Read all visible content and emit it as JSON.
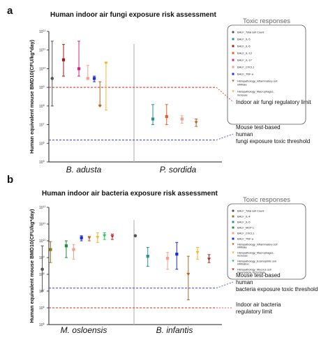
{
  "chart_data": [
    {
      "panel": "a",
      "type": "scatter",
      "title": "Human indoor air fungi exposure risk assessment",
      "ylabel": "Human equivalent mouse BMD10(CFU/kg*day)",
      "yscale": "log",
      "ylim": [
        100000.0,
        1000000000000.0
      ],
      "ytick_exponents": [
        5,
        6,
        7,
        8,
        9,
        10,
        11,
        12
      ],
      "categories": [
        "B. adusta",
        "P. sordida"
      ],
      "legend_title": "Toxic responses",
      "legend_placement": "top-right",
      "series": [
        {
          "name": "BALF_Total cell Count",
          "color": "#555555",
          "marker": "circle",
          "points": [
            {
              "group": 0,
              "offset": -0.78,
              "value": 3000000000.0,
              "low": 100000000.0,
              "high": 300000000000.0
            }
          ]
        },
        {
          "name": "BALF_IL-5",
          "color": "#2a8f96",
          "marker": "square",
          "points": [
            {
              "group": 1,
              "offset": -0.62,
              "value": 20000000.0,
              "low": 10000000.0,
              "high": 120000000.0
            }
          ]
        },
        {
          "name": "BALF_IL-6",
          "color": "#9b1b1b",
          "marker": "square",
          "points": [
            {
              "group": 0,
              "offset": -0.5,
              "value": 30000000000.0,
              "low": 4000000000.0,
              "high": 200000000000.0
            }
          ]
        },
        {
          "name": "BALF_IL-13",
          "color": "#e06020",
          "marker": "square",
          "points": [
            {
              "group": 1,
              "offset": -0.28,
              "value": 27000000.0,
              "low": 10000000.0,
              "high": 120000000.0
            }
          ]
        },
        {
          "name": "BALF_IL-17",
          "color": "#d6247a",
          "marker": "square",
          "points": [
            {
              "group": 0,
              "offset": -0.12,
              "value": 10000000000.0,
              "low": 4000000000.0,
              "high": 300000000000.0
            }
          ]
        },
        {
          "name": "BALF_CXCL1",
          "color": "#f2a08a",
          "marker": "square",
          "points": [
            {
              "group": 0,
              "offset": 0.1,
              "value": 3000000000.0,
              "low": 3000000000.0,
              "high": 15000000000.0
            },
            {
              "group": 1,
              "offset": 0.1,
              "value": 20000000.0,
              "low": 12000000.0,
              "high": 30000000.0
            }
          ]
        },
        {
          "name": "BALF_TNF-a",
          "color": "#1a2be0",
          "marker": "square",
          "points": [
            {
              "group": 0,
              "offset": 0.26,
              "value": 3000000000.0,
              "low": 2000000000.0,
              "high": 4000000000.0
            }
          ]
        },
        {
          "name": "Histopathology_Inflammatory cell infiltrate",
          "color": "#b8651e",
          "marker": "triangle-down",
          "points": [
            {
              "group": 0,
              "offset": 0.4,
              "value": 100000000.0,
              "low": 100000000.0,
              "high": 2000000000.0
            },
            {
              "group": 1,
              "offset": 0.45,
              "value": 13000000.0,
              "low": 8000000.0,
              "high": 20000000.0
            }
          ]
        },
        {
          "name": "Histopathology_Macrophages, increase",
          "color": "#f2b630",
          "marker": "triangle-down",
          "points": [
            {
              "group": 0,
              "offset": 0.55,
              "value": 20000000000.0,
              "low": 60000000.0,
              "high": 20000000000.0
            }
          ]
        }
      ],
      "reference_lines": [
        {
          "label": "Indoor air fungi regulatory limit",
          "value": 1000000000.0,
          "color": "#e0281e"
        },
        {
          "label": "Mouse test-based\nhuman\nfungi exposure toxic threshold",
          "value": 1500000.0,
          "color": "#3a3ae8"
        }
      ]
    },
    {
      "panel": "b",
      "type": "scatter",
      "title": "Human indoor air bacteria exposure risk assessment",
      "ylabel": "Human equivalent mouse BMD10(CFU/kg*day)",
      "yscale": "log",
      "ylim": [
        100000.0,
        1000000000000.0
      ],
      "ytick_exponents": [
        5,
        6,
        7,
        8,
        9,
        10,
        11,
        12
      ],
      "categories": [
        "M. osloensis",
        "B. infantis"
      ],
      "legend_title": "Toxic responses",
      "legend_placement": "top-right",
      "series": [
        {
          "name": "BALF_Total cell Count",
          "color": "#555555",
          "marker": "circle",
          "points": [
            {
              "group": 0,
              "offset": -0.9,
              "value": 200000000.0,
              "low": 10000000.0,
              "high": 5000000000.0
            },
            {
              "group": 1,
              "offset": -0.85,
              "value": 20000000000.0,
              "low": 20000000000.0,
              "high": 20000000000.0
            }
          ]
        },
        {
          "name": "BALF_IL-4",
          "color": "#8a7a2a",
          "marker": "square",
          "points": [
            {
              "group": 0,
              "offset": -0.72,
              "value": 3000000000.0,
              "low": 500000000.0,
              "high": 9000000000.0
            }
          ]
        },
        {
          "name": "BALF_IL-5",
          "color": "#2a8f96",
          "marker": "square",
          "points": [
            {
              "group": 1,
              "offset": -0.58,
              "value": 1200000000.0,
              "low": 300000000.0,
              "high": 4000000000.0
            }
          ]
        },
        {
          "name": "BALF_MCP-1",
          "color": "#1e8c3c",
          "marker": "square",
          "points": [
            {
              "group": 0,
              "offset": -0.38,
              "value": 5000000000.0,
              "low": 1000000000.0,
              "high": 10000000000.0
            }
          ]
        },
        {
          "name": "BALF_CXCL1",
          "color": "#f2a08a",
          "marker": "square",
          "points": [
            {
              "group": 0,
              "offset": -0.22,
              "value": 3000000000.0,
              "low": 800000000.0,
              "high": 6000000000.0
            },
            {
              "group": 1,
              "offset": -0.15,
              "value": 900000000.0,
              "low": 200000000.0,
              "high": 2000000000.0
            }
          ]
        },
        {
          "name": "BALF_TNF-a",
          "color": "#1a2be0",
          "marker": "square",
          "points": [
            {
              "group": 0,
              "offset": -0.05,
              "value": 15000000000.0,
              "low": 10000000000.0,
              "high": 20000000000.0
            },
            {
              "group": 1,
              "offset": 0.05,
              "value": 1600000000.0,
              "low": 200000000.0,
              "high": 8000000000.0
            }
          ]
        },
        {
          "name": "Histopathology_Inflammatory cell infiltrate",
          "color": "#b8651e",
          "marker": "triangle-down",
          "points": [
            {
              "group": 0,
              "offset": 0.12,
              "value": 15000000000.0,
              "low": 10000000000.0,
              "high": 18000000000.0
            },
            {
              "group": 1,
              "offset": 0.3,
              "value": 100000000.0,
              "low": 3000000.0,
              "high": 1200000000.0
            }
          ]
        },
        {
          "name": "Histopathology_Macrophages, increase",
          "color": "#f2b630",
          "marker": "triangle-down",
          "points": [
            {
              "group": 0,
              "offset": 0.3,
              "value": 16000000000.0,
              "low": 8000000000.0,
              "high": 30000000000.0
            },
            {
              "group": 1,
              "offset": 0.5,
              "value": 2000000000.0,
              "low": 800000000.0,
              "high": 4000000000.0
            }
          ]
        },
        {
          "name": "Histopathology_Eosinophilic cell infiltration",
          "color": "#22c25a",
          "marker": "triangle-down",
          "points": [
            {
              "group": 0,
              "offset": 0.45,
              "value": 20000000000.0,
              "low": 12000000000.0,
              "high": 30000000000.0
            }
          ]
        },
        {
          "name": "Histopathology_Mucous cell hyperplasia, bronchiole",
          "color": "#c82222",
          "marker": "triangle-down",
          "points": [
            {
              "group": 0,
              "offset": 0.62,
              "value": 18000000000.0,
              "low": 12000000000.0,
              "high": 25000000000.0
            },
            {
              "group": 1,
              "offset": 0.75,
              "value": 800000000.0,
              "low": 500000000.0,
              "high": 1500000000.0
            }
          ]
        }
      ],
      "reference_lines": [
        {
          "label": "Mouse test-based\nhuman\nbacteria exposure toxic threshold",
          "value": 15000000.0,
          "color": "#3a3ae8"
        },
        {
          "label": "Indoor air bacteria\nregulatory limit",
          "value": 1000000.0,
          "color": "#e0281e"
        }
      ]
    }
  ]
}
